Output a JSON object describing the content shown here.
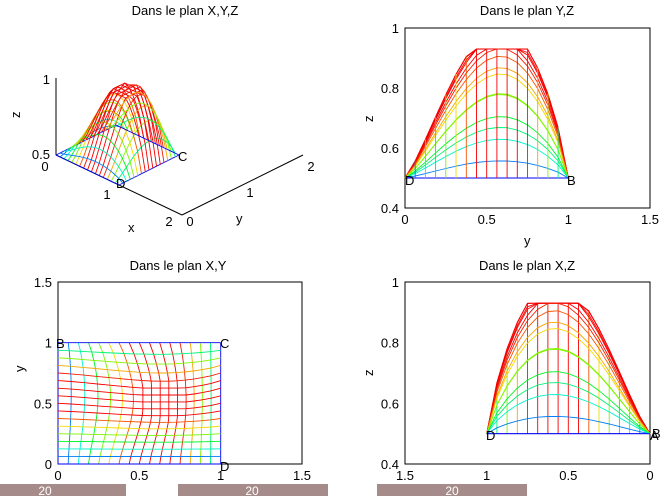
{
  "chart_data": [
    {
      "type": "line",
      "view": "3d",
      "title": "Dans le plan X,Y,Z",
      "xlabel": "x",
      "ylabel": "y",
      "zlabel": "z",
      "xlim": [
        0,
        2
      ],
      "ylim": [
        0,
        2
      ],
      "zlim": [
        0.5,
        1
      ],
      "xticks": [
        "0",
        "1",
        "2"
      ],
      "yticks": [
        "0",
        "1",
        "2"
      ],
      "zticks": [
        "0.5",
        "1"
      ],
      "vertex_labels": [
        "C",
        "D"
      ],
      "surface": "mesh, colored by height (blue low, red high), base z = 0.5, peak z ≈ 0.93 near x = 0.7, y = 0.7"
    },
    {
      "type": "line",
      "view": "projection",
      "title": "Dans le plan Y,Z",
      "xlabel": "y",
      "ylabel": "z",
      "xlim": [
        0,
        1.5
      ],
      "ylim": [
        0.4,
        1
      ],
      "xticks": [
        "0",
        "0.5",
        "1",
        "1.5"
      ],
      "yticks": [
        "0.4",
        "0.6",
        "0.8",
        "1"
      ],
      "vertex_labels": [
        "D",
        "B"
      ],
      "peak": {
        "y": 0.7,
        "z": 0.93
      }
    },
    {
      "type": "line",
      "view": "projection",
      "title": "Dans le plan X,Y",
      "xlabel": "",
      "ylabel": "y",
      "xlim": [
        0,
        1.5
      ],
      "ylim": [
        0,
        1.5
      ],
      "xticks": [
        "0",
        "0.5",
        "1",
        "1.5"
      ],
      "yticks": [
        "0",
        "0.5",
        "1",
        "1.5"
      ],
      "vertex_labels": [
        "B",
        "C",
        "D"
      ]
    },
    {
      "type": "line",
      "view": "projection",
      "title": "Dans le plan X,Z",
      "xlabel": "",
      "ylabel": "z",
      "xlim": [
        1.5,
        0
      ],
      "ylim": [
        0.4,
        1
      ],
      "xticks": [
        "1.5",
        "1",
        "0.5",
        "0"
      ],
      "yticks": [
        "0.4",
        "0.6",
        "0.8",
        "1"
      ],
      "vertex_labels": [
        "D",
        "A",
        "B"
      ],
      "peak": {
        "x": 0.7,
        "z": 0.93
      }
    }
  ],
  "footer_chips": [
    "20",
    "20",
    "20"
  ]
}
